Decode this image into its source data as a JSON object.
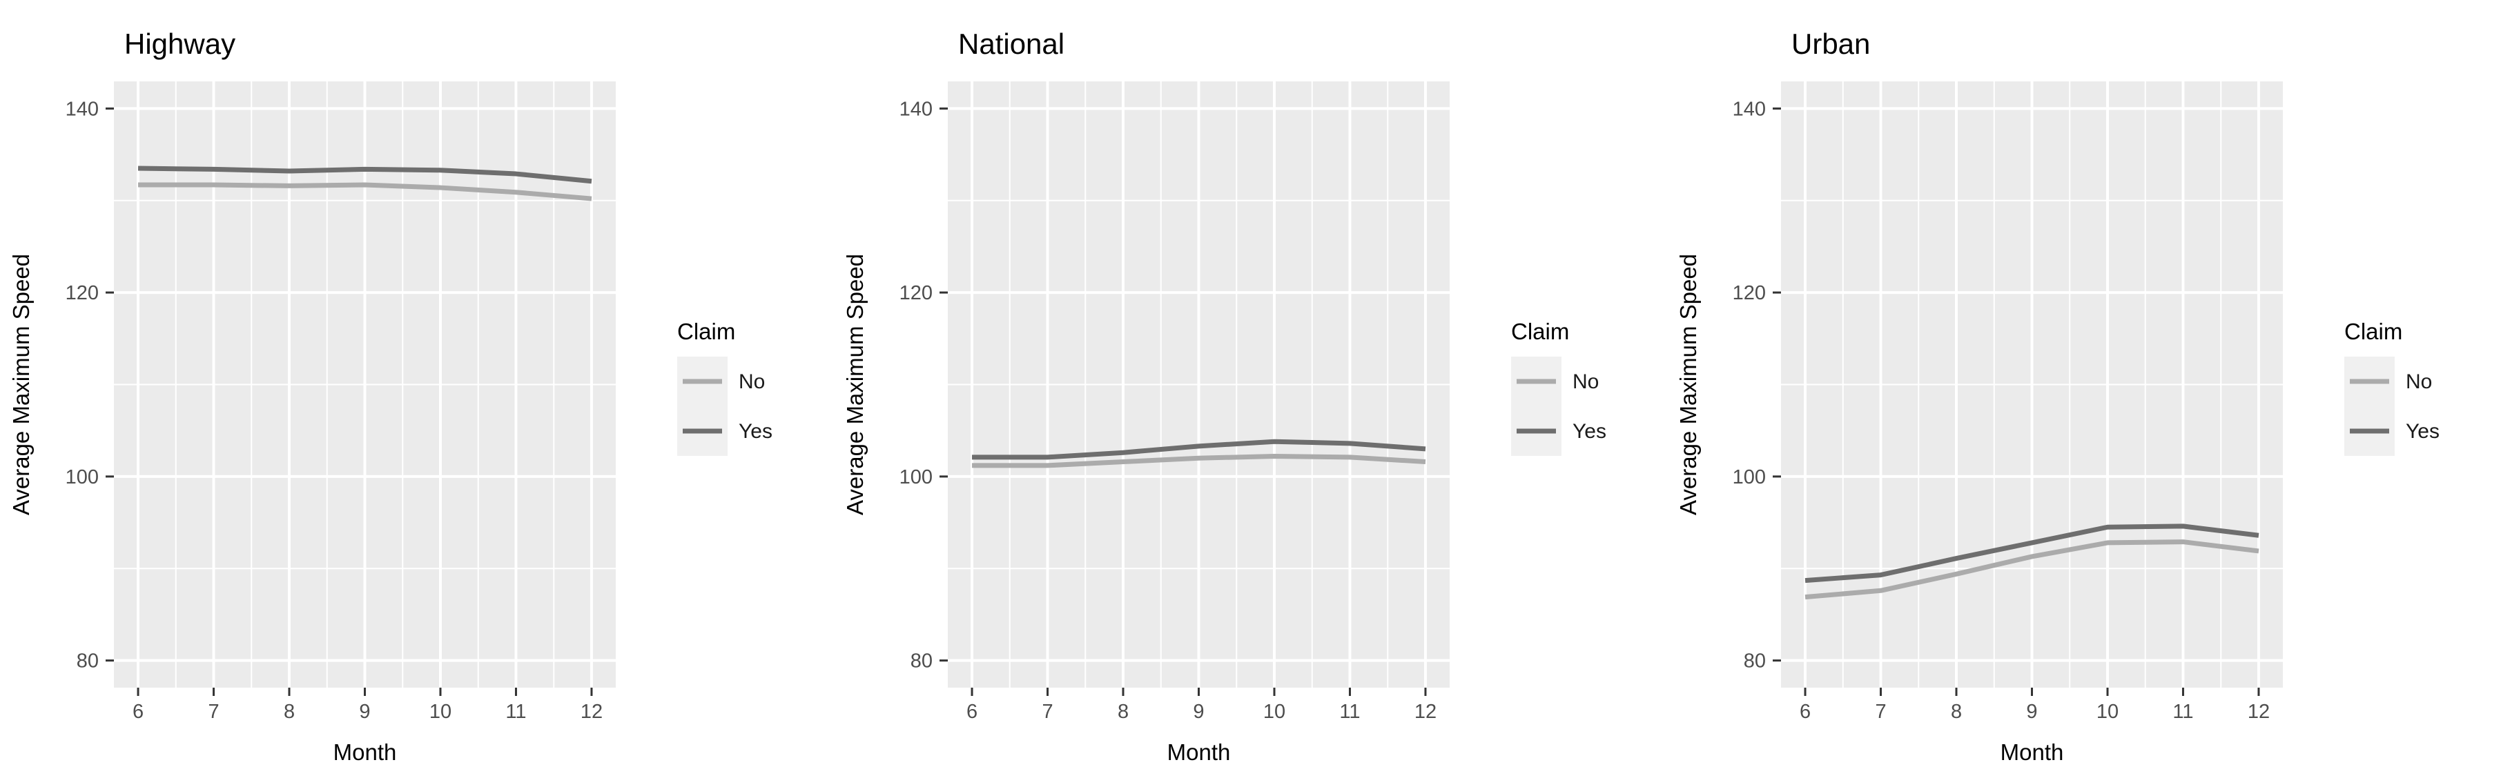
{
  "style": {
    "panel_bg": "#EBEBEB",
    "grid_color": "#FFFFFF",
    "legend_key_bg": "#F0F0F0",
    "axis_text_color": "#4D4D4D",
    "tick_color": "#333333",
    "no_line_color": "#ABABAB",
    "yes_line_color": "#6E6E6E"
  },
  "chart_data": [
    {
      "type": "line",
      "title": "Highway",
      "xlabel": "Month",
      "ylabel": "Average Maximum Speed",
      "legend": {
        "title": "Claim",
        "position": "right"
      },
      "grid": {
        "on": true,
        "y_minor": [
          90,
          110,
          130
        ],
        "x_minor": [
          6.5,
          7.5,
          8.5,
          9.5,
          10.5,
          11.5
        ]
      },
      "x": [
        6,
        7,
        8,
        9,
        10,
        11,
        12
      ],
      "x_ticks": [
        6,
        7,
        8,
        9,
        10,
        11,
        12
      ],
      "y_ticks": [
        80,
        100,
        120,
        140
      ],
      "xlim": [
        5.68,
        12.32
      ],
      "ylim": [
        77.05,
        142.95
      ],
      "series": [
        {
          "name": "No",
          "color": "#ABABAB",
          "values": [
            131.7,
            131.7,
            131.6,
            131.7,
            131.4,
            130.9,
            130.2
          ]
        },
        {
          "name": "Yes",
          "color": "#6E6E6E",
          "values": [
            133.5,
            133.4,
            133.2,
            133.4,
            133.3,
            132.9,
            132.1
          ]
        }
      ]
    },
    {
      "type": "line",
      "title": "National",
      "xlabel": "Month",
      "ylabel": "Average Maximum Speed",
      "legend": {
        "title": "Claim",
        "position": "right"
      },
      "grid": {
        "on": true,
        "y_minor": [
          90,
          110,
          130
        ],
        "x_minor": [
          6.5,
          7.5,
          8.5,
          9.5,
          10.5,
          11.5
        ]
      },
      "x": [
        6,
        7,
        8,
        9,
        10,
        11,
        12
      ],
      "x_ticks": [
        6,
        7,
        8,
        9,
        10,
        11,
        12
      ],
      "y_ticks": [
        80,
        100,
        120,
        140
      ],
      "xlim": [
        5.68,
        12.32
      ],
      "ylim": [
        77.05,
        142.95
      ],
      "series": [
        {
          "name": "No",
          "color": "#ABABAB",
          "values": [
            101.2,
            101.2,
            101.6,
            102.0,
            102.2,
            102.1,
            101.6
          ]
        },
        {
          "name": "Yes",
          "color": "#6E6E6E",
          "values": [
            102.1,
            102.1,
            102.6,
            103.3,
            103.8,
            103.6,
            103.0
          ]
        }
      ]
    },
    {
      "type": "line",
      "title": "Urban",
      "xlabel": "Month",
      "ylabel": "Average Maximum Speed",
      "legend": {
        "title": "Claim",
        "position": "right"
      },
      "grid": {
        "on": true,
        "y_minor": [
          90,
          110,
          130
        ],
        "x_minor": [
          6.5,
          7.5,
          8.5,
          9.5,
          10.5,
          11.5
        ]
      },
      "x": [
        6,
        7,
        8,
        9,
        10,
        11,
        12
      ],
      "x_ticks": [
        6,
        7,
        8,
        9,
        10,
        11,
        12
      ],
      "y_ticks": [
        80,
        100,
        120,
        140
      ],
      "xlim": [
        5.68,
        12.32
      ],
      "ylim": [
        77.05,
        142.95
      ],
      "series": [
        {
          "name": "No",
          "color": "#ABABAB",
          "values": [
            86.9,
            87.6,
            89.4,
            91.3,
            92.8,
            92.9,
            91.9
          ]
        },
        {
          "name": "Yes",
          "color": "#6E6E6E",
          "values": [
            88.7,
            89.3,
            91.1,
            92.8,
            94.5,
            94.6,
            93.6
          ]
        }
      ]
    }
  ]
}
